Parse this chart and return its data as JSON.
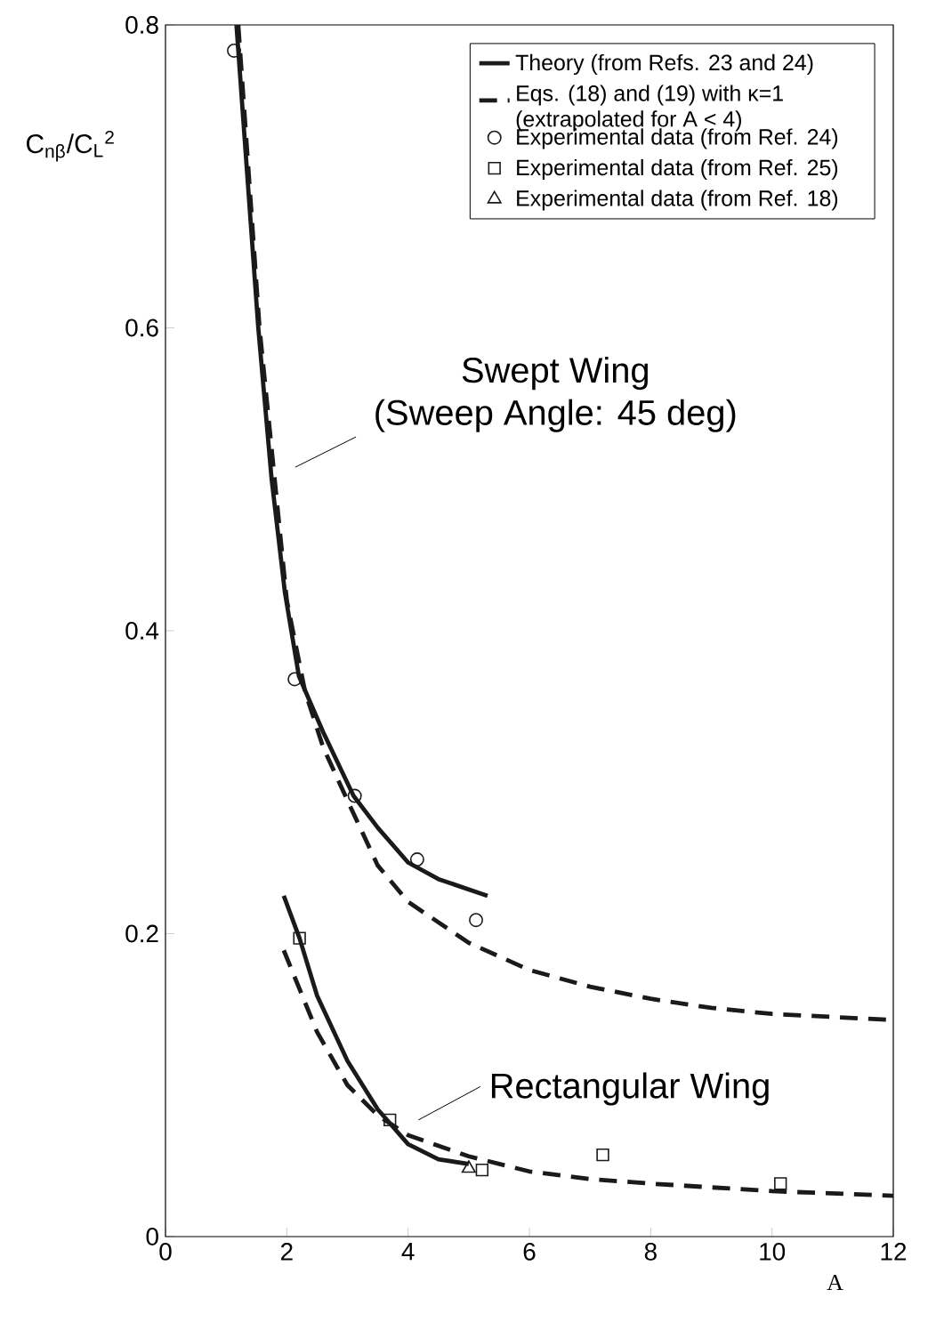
{
  "chart_data": {
    "type": "line",
    "ylabel": "C$_{nβ}$/C$_{L}$$^{2}$",
    "xlabel": "A",
    "xlim": [
      0,
      12
    ],
    "ylim": [
      0,
      0.8
    ],
    "xticks": [
      0,
      2,
      4,
      6,
      8,
      10,
      12
    ],
    "yticks": [
      0,
      0.2,
      0.4,
      0.6,
      0.8
    ],
    "legend": "top right",
    "grid": false,
    "annotations": [
      "Swept Wing",
      "(Sweep Angle: 45 deg)",
      "Rectangular Wing"
    ],
    "series": [
      {
        "name": "Theory (from Refs. 23 and 24)",
        "line_style": "solid",
        "marker": "none",
        "color": "#1a1a1a",
        "x": [
          1.17,
          1.35,
          1.53,
          1.75,
          1.97,
          2.2,
          2.6,
          3.1,
          3.5,
          4.0,
          4.5,
          5.31
        ],
        "values": [
          0.8,
          0.7,
          0.6,
          0.5,
          0.425,
          0.37,
          0.333,
          0.291,
          0.27,
          0.247,
          0.236,
          0.225
        ]
      },
      {
        "line_style": "solid",
        "marker": "none",
        "color": "#1a1a1a",
        "x": [
          1.95,
          2.21,
          2.5,
          3.0,
          3.5,
          4.0,
          4.5,
          5.0
        ],
        "values": [
          0.225,
          0.197,
          0.159,
          0.116,
          0.084,
          0.061,
          0.051,
          0.048
        ]
      },
      {
        "name": "Eqs. (18) and (19) with κ=1 (extrapolated for A < 4)",
        "line_style": "dashed",
        "marker": "none",
        "color": "#1a1a1a",
        "x": [
          1.2,
          1.55,
          2.0,
          2.3,
          2.6,
          3.0,
          3.5,
          4.0,
          5.0,
          6.0,
          7.0,
          8.0,
          9.0,
          10.0,
          12.0
        ],
        "values": [
          0.8,
          0.6,
          0.42,
          0.36,
          0.323,
          0.288,
          0.245,
          0.221,
          0.194,
          0.176,
          0.165,
          0.157,
          0.151,
          0.147,
          0.143
        ]
      },
      {
        "line_style": "dashed",
        "marker": "none",
        "color": "#1a1a1a",
        "x": [
          1.95,
          2.5,
          3.0,
          3.5,
          4.0,
          5.0,
          6.0,
          7.0,
          8.0,
          10.0,
          12.0
        ],
        "values": [
          0.189,
          0.135,
          0.1,
          0.08,
          0.067,
          0.053,
          0.043,
          0.038,
          0.035,
          0.03,
          0.027
        ]
      },
      {
        "name": "Experimental data (from Ref. 24)",
        "type": "scatter",
        "marker": "circle",
        "color": "#1a1a1a",
        "x": [
          1.13,
          2.13,
          3.12,
          4.15,
          5.12
        ],
        "values": [
          0.783,
          0.368,
          0.291,
          0.249,
          0.209
        ]
      },
      {
        "name": "Experimental data (from Ref. 25)",
        "type": "scatter",
        "marker": "square",
        "color": "#1a1a1a",
        "x": [
          2.21,
          3.7,
          5.22,
          7.21,
          10.14
        ],
        "values": [
          0.197,
          0.077,
          0.044,
          0.054,
          0.035
        ]
      },
      {
        "name": "Experimental data (from Ref. 18)",
        "type": "scatter",
        "marker": "triangle",
        "color": "#1a1a1a",
        "x": [
          5.0
        ],
        "values": [
          0.045
        ]
      }
    ]
  }
}
